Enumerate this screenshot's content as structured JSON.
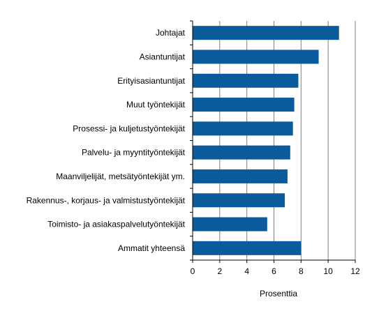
{
  "chart_data": {
    "type": "bar",
    "orientation": "horizontal",
    "title": "",
    "xlabel": "Prosenttia",
    "ylabel": "",
    "xlim": [
      0,
      12
    ],
    "x_ticks": [
      0,
      2,
      4,
      6,
      8,
      10,
      12
    ],
    "grid": "vertical gridlines",
    "legend": "none",
    "bar_color": "#0a5a9c",
    "categories": [
      "Johtajat",
      "Asiantuntijat",
      "Erityisasiantuntijat",
      "Muut työntekijät",
      "Prosessi- ja kuljetustyöntekijät",
      "Palvelu- ja myyntityöntekijät",
      "Maanviljelijät, metsätyöntekijät ym.",
      "Rakennus-, korjaus- ja valmistustyöntekijät",
      "Toimisto- ja asiakaspalvelutyöntekijät",
      "Ammatit yhteensä"
    ],
    "values": [
      10.8,
      9.3,
      7.8,
      7.5,
      7.4,
      7.2,
      7.0,
      6.8,
      5.5,
      8.0
    ]
  }
}
